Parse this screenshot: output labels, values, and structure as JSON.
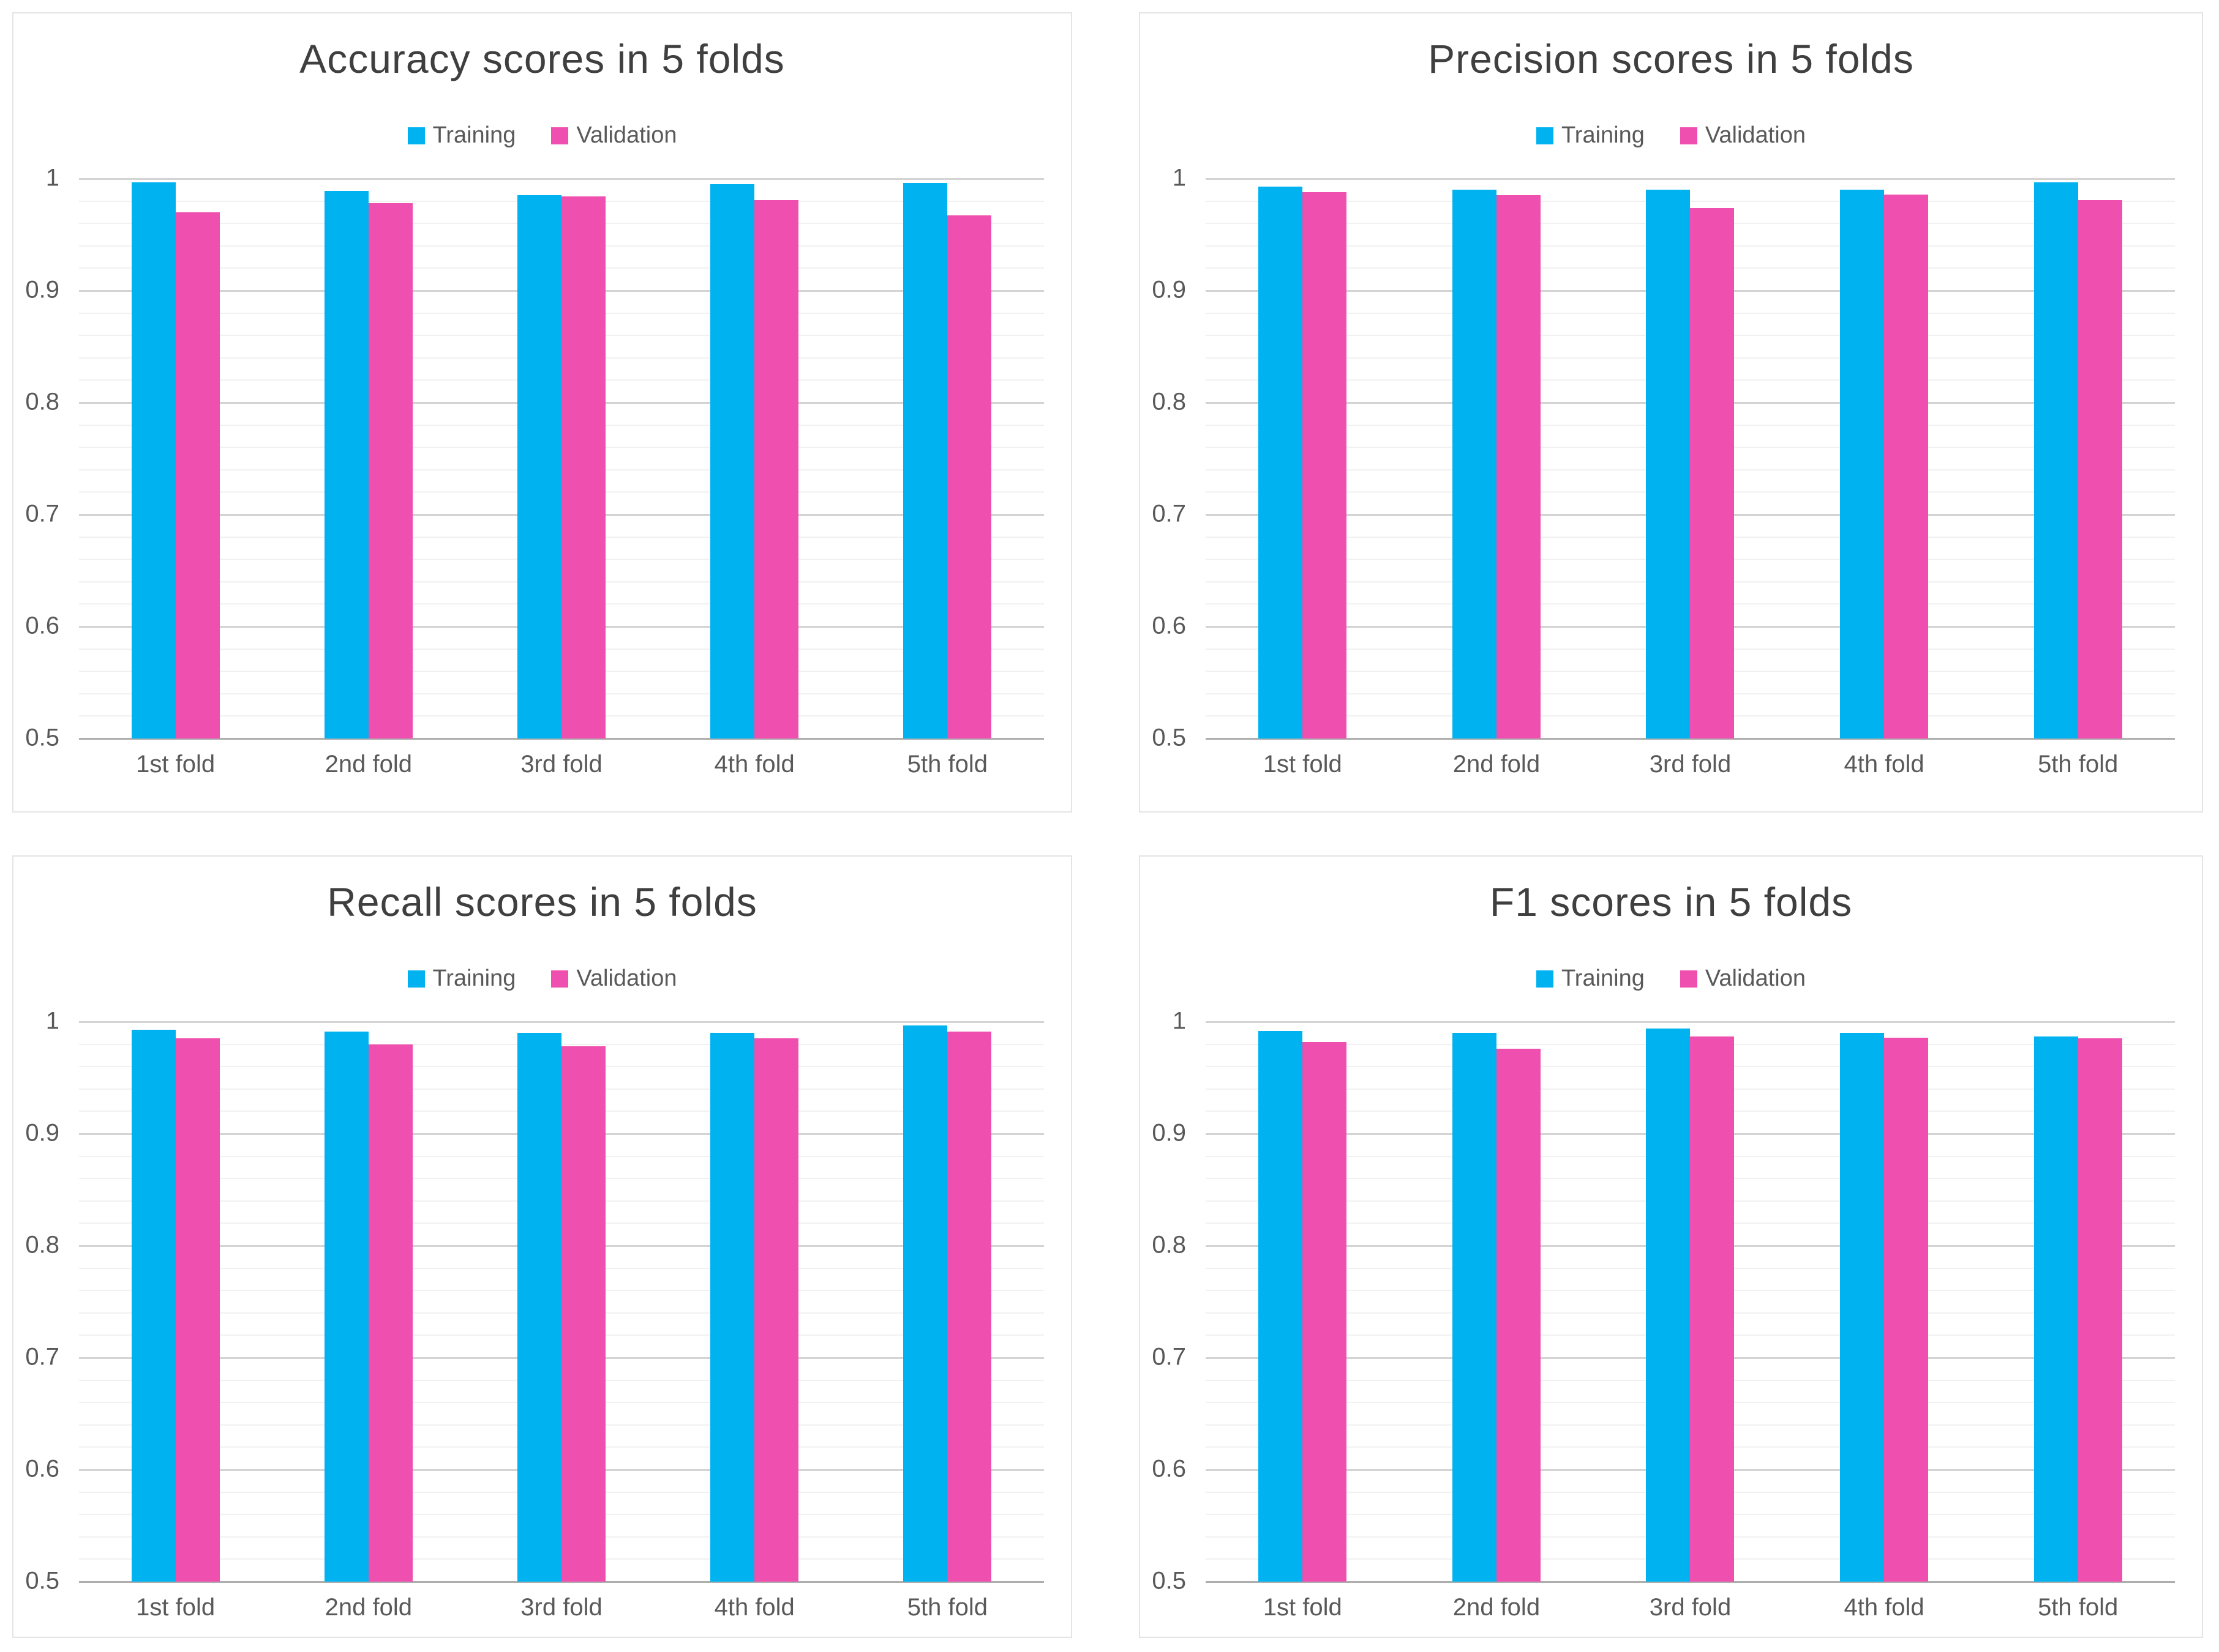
{
  "colors": {
    "training": "#00B3F0",
    "validation": "#EF4FAF",
    "title_text": "#3f3f3f",
    "axis_text": "#595959",
    "major_gridline": "#d4d4d4",
    "minor_gridline": "#f1f1f1",
    "axis_line": "#aeaeae",
    "panel_border": "#e4e4e4",
    "background": "#ffffff"
  },
  "chart_data": [
    {
      "type": "bar",
      "title": "Accuracy scores in 5 folds",
      "categories": [
        "1st fold",
        "2nd fold",
        "3rd fold",
        "4th fold",
        "5th fold"
      ],
      "series": [
        {
          "name": "Training",
          "color": "#00B3F0",
          "values": [
            0.997,
            0.989,
            0.985,
            0.995,
            0.996
          ]
        },
        {
          "name": "Validation",
          "color": "#EF4FAF",
          "values": [
            0.97,
            0.978,
            0.984,
            0.981,
            0.967
          ]
        }
      ],
      "xlabel": "",
      "ylabel": "",
      "ylim": [
        0.5,
        1.0
      ],
      "y_major_step": 0.1,
      "y_minor_step": 0.02,
      "y_tick_labels": [
        "1",
        "0.9",
        "0.8",
        "0.7",
        "0.6",
        "0.5"
      ],
      "legend_position": "top",
      "grid": true
    },
    {
      "type": "bar",
      "title": "Precision scores in 5 folds",
      "categories": [
        "1st fold",
        "2nd fold",
        "3rd fold",
        "4th fold",
        "5th fold"
      ],
      "series": [
        {
          "name": "Training",
          "color": "#00B3F0",
          "values": [
            0.993,
            0.99,
            0.99,
            0.99,
            0.997
          ]
        },
        {
          "name": "Validation",
          "color": "#EF4FAF",
          "values": [
            0.988,
            0.985,
            0.974,
            0.986,
            0.981
          ]
        }
      ],
      "xlabel": "",
      "ylabel": "",
      "ylim": [
        0.5,
        1.0
      ],
      "y_major_step": 0.1,
      "y_minor_step": 0.02,
      "y_tick_labels": [
        "1",
        "0.9",
        "0.8",
        "0.7",
        "0.6",
        "0.5"
      ],
      "legend_position": "top",
      "grid": true
    },
    {
      "type": "bar",
      "title": "Recall scores in 5 folds",
      "categories": [
        "1st fold",
        "2nd fold",
        "3rd fold",
        "4th fold",
        "5th fold"
      ],
      "series": [
        {
          "name": "Training",
          "color": "#00B3F0",
          "values": [
            0.993,
            0.991,
            0.99,
            0.99,
            0.997
          ]
        },
        {
          "name": "Validation",
          "color": "#EF4FAF",
          "values": [
            0.985,
            0.98,
            0.978,
            0.985,
            0.991
          ]
        }
      ],
      "xlabel": "",
      "ylabel": "",
      "ylim": [
        0.5,
        1.0
      ],
      "y_major_step": 0.1,
      "y_minor_step": 0.02,
      "y_tick_labels": [
        "1",
        "0.9",
        "0.8",
        "0.7",
        "0.6",
        "0.5"
      ],
      "legend_position": "top",
      "grid": true
    },
    {
      "type": "bar",
      "title": "F1 scores in 5 folds",
      "categories": [
        "1st fold",
        "2nd fold",
        "3rd fold",
        "4th fold",
        "5th fold"
      ],
      "series": [
        {
          "name": "Training",
          "color": "#00B3F0",
          "values": [
            0.992,
            0.99,
            0.994,
            0.99,
            0.987
          ]
        },
        {
          "name": "Validation",
          "color": "#EF4FAF",
          "values": [
            0.982,
            0.976,
            0.987,
            0.986,
            0.985
          ]
        }
      ],
      "xlabel": "",
      "ylabel": "",
      "ylim": [
        0.5,
        1.0
      ],
      "y_major_step": 0.1,
      "y_minor_step": 0.02,
      "y_tick_labels": [
        "1",
        "0.9",
        "0.8",
        "0.7",
        "0.6",
        "0.5"
      ],
      "legend_position": "top",
      "grid": true
    }
  ]
}
